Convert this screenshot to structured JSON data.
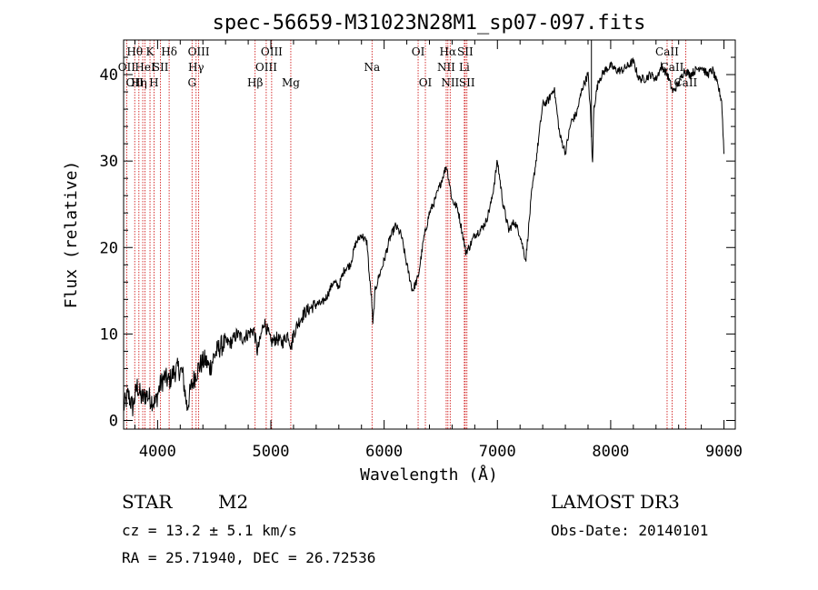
{
  "chart_data": {
    "type": "line",
    "title": "spec-56659-M31023N28M1_sp07-097.fits",
    "xlabel": "Wavelength (Å)",
    "ylabel": "Flux (relative)",
    "xlim": [
      3700,
      9100
    ],
    "ylim": [
      -1,
      44
    ],
    "xticks": [
      4000,
      5000,
      6000,
      7000,
      8000,
      9000
    ],
    "yticks": [
      0,
      10,
      20,
      30,
      40
    ],
    "spectrum": {
      "x": [
        3700,
        3740,
        3780,
        3820,
        3860,
        3900,
        3940,
        3980,
        4020,
        4060,
        4100,
        4140,
        4180,
        4220,
        4260,
        4300,
        4340,
        4380,
        4420,
        4460,
        4500,
        4550,
        4600,
        4650,
        4700,
        4750,
        4800,
        4850,
        4880,
        4900,
        4940,
        4980,
        5000,
        5050,
        5100,
        5150,
        5180,
        5200,
        5250,
        5300,
        5350,
        5400,
        5450,
        5500,
        5550,
        5600,
        5650,
        5700,
        5750,
        5800,
        5850,
        5870,
        5890,
        5900,
        5920,
        5950,
        6000,
        6050,
        6100,
        6150,
        6200,
        6250,
        6300,
        6350,
        6400,
        6450,
        6500,
        6550,
        6570,
        6600,
        6650,
        6700,
        6720,
        6750,
        6800,
        6850,
        6900,
        6950,
        7000,
        7050,
        7100,
        7150,
        7200,
        7250,
        7300,
        7350,
        7400,
        7450,
        7500,
        7550,
        7600,
        7650,
        7700,
        7750,
        7800,
        7820,
        7840,
        7850,
        7880,
        7900,
        7950,
        8000,
        8050,
        8100,
        8150,
        8200,
        8250,
        8300,
        8350,
        8400,
        8450,
        8500,
        8550,
        8600,
        8650,
        8700,
        8750,
        8800,
        8850,
        8900,
        8950,
        8980,
        9000
      ],
      "y": [
        1.5,
        3.0,
        1.5,
        4.0,
        2.5,
        3.0,
        2.5,
        2.0,
        4.0,
        5.0,
        4.5,
        5.5,
        6.0,
        5.5,
        1.5,
        4.0,
        5.5,
        6.5,
        7.0,
        6.0,
        7.5,
        8.5,
        9.0,
        9.0,
        10.0,
        9.5,
        10.0,
        10.5,
        8.0,
        9.0,
        11.5,
        10.0,
        9.0,
        9.5,
        9.0,
        10.0,
        8.5,
        10.0,
        11.5,
        12.5,
        13.0,
        13.5,
        13.5,
        14.5,
        16.0,
        15.5,
        17.5,
        18.0,
        20.5,
        21.5,
        20.5,
        16.5,
        14.0,
        11.0,
        15.0,
        16.5,
        18.5,
        21.0,
        22.5,
        21.5,
        18.0,
        15.0,
        16.5,
        21.0,
        24.0,
        25.5,
        27.5,
        29.5,
        28.0,
        25.5,
        24.5,
        21.0,
        19.5,
        20.0,
        21.5,
        22.0,
        23.0,
        25.5,
        30.0,
        25.0,
        22.0,
        23.0,
        21.5,
        18.5,
        26.0,
        31.0,
        36.5,
        37.0,
        38.5,
        33.0,
        31.0,
        34.5,
        35.5,
        38.5,
        40.0,
        36.0,
        29.5,
        36.0,
        38.5,
        39.5,
        40.5,
        41.0,
        40.5,
        40.5,
        41.0,
        41.5,
        39.5,
        39.5,
        40.0,
        39.5,
        41.0,
        40.0,
        38.0,
        39.0,
        40.5,
        40.0,
        40.5,
        41.0,
        40.0,
        40.5,
        38.5,
        37.0,
        31.0
      ]
    },
    "spike": {
      "x": 7830,
      "top": 45.0
    },
    "lines": [
      {
        "x": 3727,
        "labels": [
          {
            "text": "OII",
            "row": 2
          }
        ]
      },
      {
        "x": 3798,
        "labels": [
          {
            "text": "Hθ",
            "row": 1
          },
          {
            "text": "OII",
            "row": 3
          }
        ]
      },
      {
        "x": 3835,
        "labels": [
          {
            "text": "Hη",
            "row": 3
          }
        ]
      },
      {
        "x": 3869,
        "labels": []
      },
      {
        "x": 3889,
        "labels": [
          {
            "text": "HeI",
            "row": 2
          }
        ]
      },
      {
        "x": 3933,
        "labels": [
          {
            "text": "K",
            "row": 1
          }
        ]
      },
      {
        "x": 3968,
        "labels": [
          {
            "text": "H",
            "row": 3
          }
        ]
      },
      {
        "x": 4026,
        "labels": [
          {
            "text": "SII",
            "row": 2
          }
        ]
      },
      {
        "x": 4102,
        "labels": [
          {
            "text": "Hδ",
            "row": 1
          }
        ]
      },
      {
        "x": 4304,
        "labels": [
          {
            "text": "G",
            "row": 3
          }
        ]
      },
      {
        "x": 4340,
        "labels": [
          {
            "text": "Hγ",
            "row": 2
          }
        ]
      },
      {
        "x": 4363,
        "labels": [
          {
            "text": "OIII",
            "row": 1
          }
        ]
      },
      {
        "x": 4861,
        "labels": [
          {
            "text": "Hβ",
            "row": 3
          }
        ]
      },
      {
        "x": 4959,
        "labels": [
          {
            "text": "OIII",
            "row": 2
          }
        ]
      },
      {
        "x": 5007,
        "labels": [
          {
            "text": "OIII",
            "row": 1
          }
        ]
      },
      {
        "x": 5176,
        "labels": [
          {
            "text": "Mg",
            "row": 3
          }
        ]
      },
      {
        "x": 5893,
        "labels": [
          {
            "text": "Na",
            "row": 2
          }
        ]
      },
      {
        "x": 6300,
        "labels": [
          {
            "text": "OI",
            "row": 1
          }
        ]
      },
      {
        "x": 6364,
        "labels": [
          {
            "text": "OI",
            "row": 3
          }
        ]
      },
      {
        "x": 6548,
        "labels": [
          {
            "text": "NII",
            "row": 2
          }
        ]
      },
      {
        "x": 6563,
        "labels": [
          {
            "text": "Hα",
            "row": 1
          }
        ]
      },
      {
        "x": 6583,
        "labels": [
          {
            "text": "NII",
            "row": 3
          }
        ]
      },
      {
        "x": 6708,
        "labels": [
          {
            "text": "Li",
            "row": 2
          }
        ]
      },
      {
        "x": 6716,
        "labels": [
          {
            "text": "SII",
            "row": 1
          }
        ]
      },
      {
        "x": 6731,
        "labels": [
          {
            "text": "SII",
            "row": 3
          }
        ]
      },
      {
        "x": 8498,
        "labels": [
          {
            "text": "CaII",
            "row": 1
          }
        ]
      },
      {
        "x": 8542,
        "labels": [
          {
            "text": "CaII",
            "row": 2
          }
        ]
      },
      {
        "x": 8662,
        "labels": [
          {
            "text": "CaII",
            "row": 3
          }
        ]
      }
    ]
  },
  "info": {
    "object_class": "STAR",
    "subclass": "M2",
    "survey": "LAMOST DR3",
    "cz": "cz = 13.2 ± 5.1 km/s",
    "obs_date": "Obs-Date: 20140101",
    "coords": "RA =  25.71940, DEC =  26.72536"
  },
  "colors": {
    "spectrum": "#000000",
    "line_marker": "#cc0000",
    "axes": "#000000"
  }
}
